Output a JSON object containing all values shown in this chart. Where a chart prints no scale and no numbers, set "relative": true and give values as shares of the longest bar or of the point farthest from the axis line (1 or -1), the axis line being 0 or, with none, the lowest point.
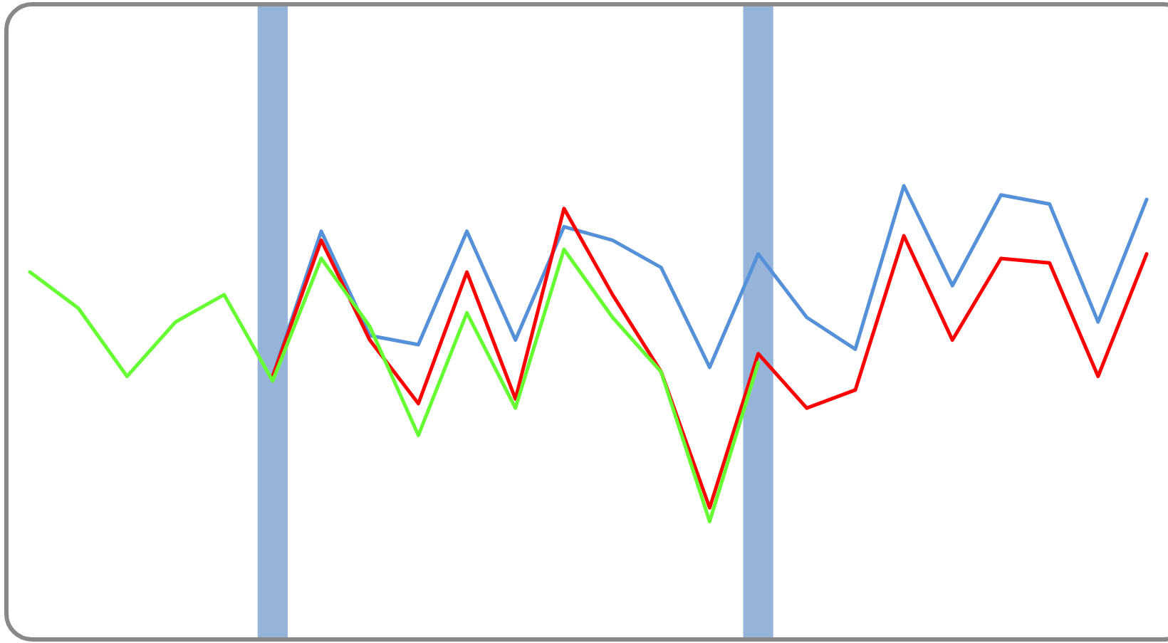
{
  "chart_data": {
    "type": "line",
    "relative": true,
    "categories": [
      null,
      null,
      null,
      null,
      null,
      null,
      null,
      null,
      null,
      null,
      null,
      null,
      null,
      null,
      null,
      null,
      null,
      null,
      null,
      null,
      null,
      null,
      null,
      null
    ],
    "series": [
      {
        "color": "#5591d8",
        "values": [
          null,
          null,
          null,
          null,
          null,
          0.58,
          0.9,
          0.67,
          0.65,
          0.9,
          0.66,
          0.91,
          0.88,
          0.82,
          0.6,
          0.85,
          0.71,
          0.64,
          1.0,
          0.78,
          0.98,
          0.96,
          0.7,
          0.97
        ]
      },
      {
        "color": "#ff0000",
        "values": [
          null,
          null,
          null,
          null,
          null,
          0.58,
          0.88,
          0.66,
          0.52,
          0.81,
          0.53,
          0.95,
          0.76,
          0.59,
          0.29,
          0.63,
          0.51,
          0.55,
          0.89,
          0.66,
          0.84,
          0.83,
          0.58,
          0.85
        ]
      },
      {
        "color": "#66ff33",
        "values": [
          0.81,
          0.73,
          0.58,
          0.7,
          0.76,
          0.57,
          0.84,
          0.69,
          0.45,
          0.72,
          0.51,
          0.86,
          0.71,
          0.59,
          0.26,
          0.61,
          null,
          null,
          null,
          null,
          null,
          null,
          null,
          null
        ]
      }
    ],
    "marker": "none",
    "line_style": "solid"
  }
}
